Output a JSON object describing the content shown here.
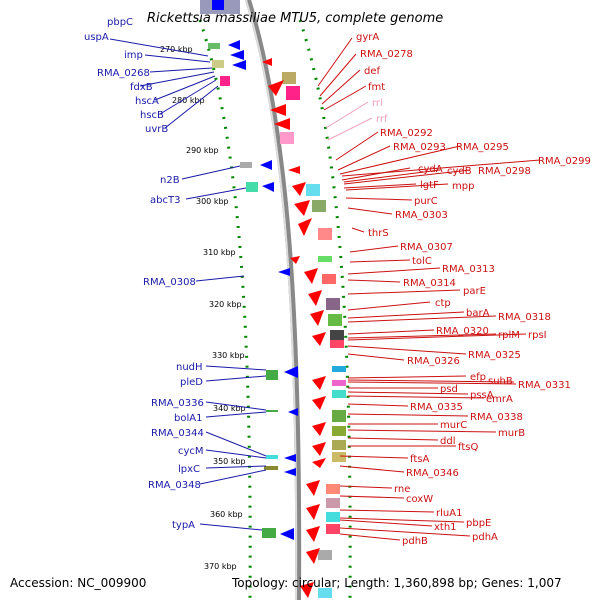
{
  "title": "Rickettsia massiliae MTU5, complete genome",
  "corner_tag": "pbpC",
  "footer": {
    "accession": "Accession: NC_009900",
    "stats": "Topology: circular; Length: 1,360,898 bp; Genes: 1,007"
  },
  "ticks": [
    "270 kbp",
    "280 kbp",
    "290 kbp",
    "300 kbp",
    "310 kbp",
    "320 kbp",
    "330 kbp",
    "340 kbp",
    "350 kbp",
    "360 kbp",
    "370 kbp"
  ],
  "left_labels": [
    "uspA",
    "imp",
    "RMA_0268",
    "fdxB",
    "hscA",
    "hscB",
    "uvrB",
    "n2B",
    "abcT3",
    "RMA_0308",
    "nudH",
    "pleD",
    "RMA_0336",
    "bolA1",
    "RMA_0344",
    "cycM",
    "lpxC",
    "RMA_0348",
    "typA"
  ],
  "right_labels": [
    "gyrA",
    "RMA_0278",
    "def",
    "fmt",
    "rrl",
    "rrf",
    "RMA_0292",
    "RMA_0293",
    "RMA_0295",
    "RMA_0299",
    "cydA",
    "cydB",
    "RMA_0298",
    "lgtF",
    "mpp",
    "purC",
    "RMA_0303",
    "thrS",
    "RMA_0307",
    "tolC",
    "RMA_0313",
    "RMA_0314",
    "parE",
    "ctp",
    "barA",
    "RMA_0318",
    "RMA_0320",
    "rplM",
    "rpsI",
    "RMA_0325",
    "RMA_0326",
    "efp",
    "suhB",
    "RMA_0331",
    "psd",
    "pssA",
    "emrA",
    "RMA_0335",
    "RMA_0338",
    "murC",
    "murB",
    "ddl",
    "ftsQ",
    "ftsA",
    "RMA_0346",
    "rne",
    "coxW",
    "rluA1",
    "pbpE",
    "xth1",
    "pdhA",
    "pdhB"
  ],
  "colors": {
    "forward_arrow": "#ff0000",
    "reverse_arrow": "#0000ff",
    "rna": "#ff99cc",
    "ring": "#888888",
    "ticks": "#008800"
  }
}
